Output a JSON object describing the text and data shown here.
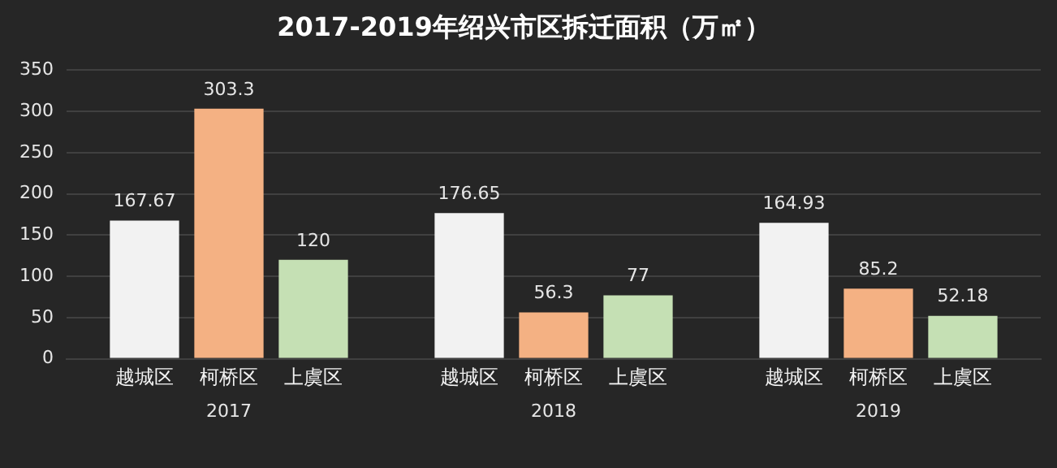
{
  "chart_data": {
    "type": "bar",
    "title": "2017-2019年绍兴市区拆迁面积（万㎡）",
    "categories": [
      "2017",
      "2018",
      "2019"
    ],
    "series": [
      {
        "name": "越城区",
        "color": "#f2f2f2",
        "values": [
          167.67,
          176.65,
          164.93
        ]
      },
      {
        "name": "柯桥区",
        "color": "#f4b183",
        "values": [
          303.3,
          56.3,
          85.2
        ]
      },
      {
        "name": "上虞区",
        "color": "#c5e0b4",
        "values": [
          120,
          77,
          52.18
        ]
      }
    ],
    "ylim": [
      0,
      350
    ],
    "yticks": [
      0,
      50,
      100,
      150,
      200,
      250,
      300,
      350
    ],
    "grid": "y",
    "data_labels": true
  }
}
